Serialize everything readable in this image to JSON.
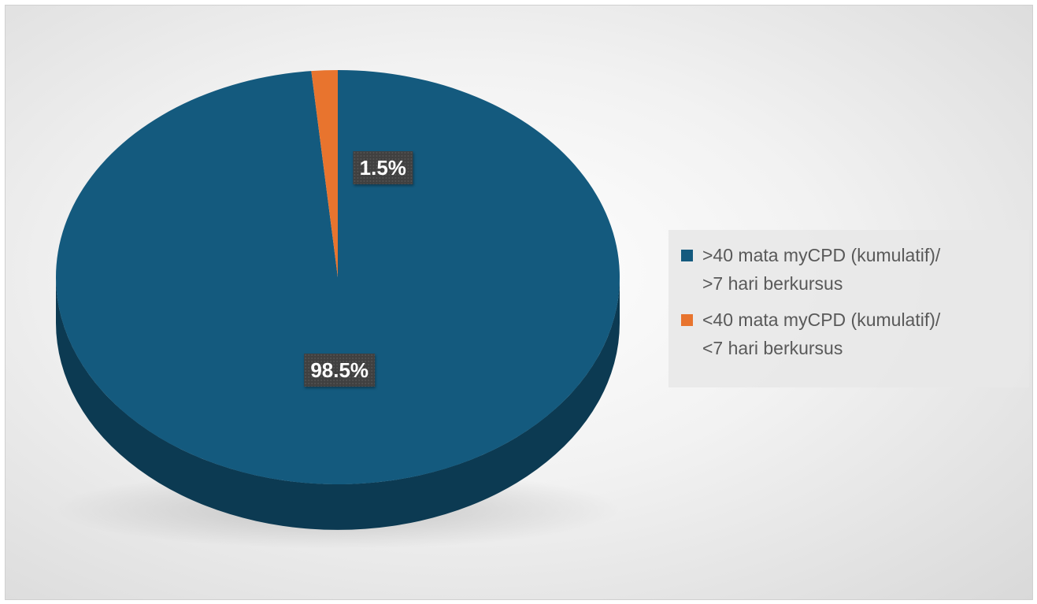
{
  "chart_data": {
    "type": "pie",
    "style": "3d",
    "title": "",
    "legend_position": "right",
    "slices": [
      {
        "label_lines": [
          ">40 mata myCPD (kumulatif)/",
          ">7 hari berkursus"
        ],
        "value": 98.5,
        "data_label": "98.5%",
        "color": "#145a7e",
        "side_color": "#0c3a52"
      },
      {
        "label_lines": [
          "<40 mata myCPD (kumulatif)/",
          "<7 hari berkursus"
        ],
        "value": 1.5,
        "data_label": "1.5%",
        "color": "#e8742e",
        "side_color": "#a84f1c"
      }
    ]
  }
}
